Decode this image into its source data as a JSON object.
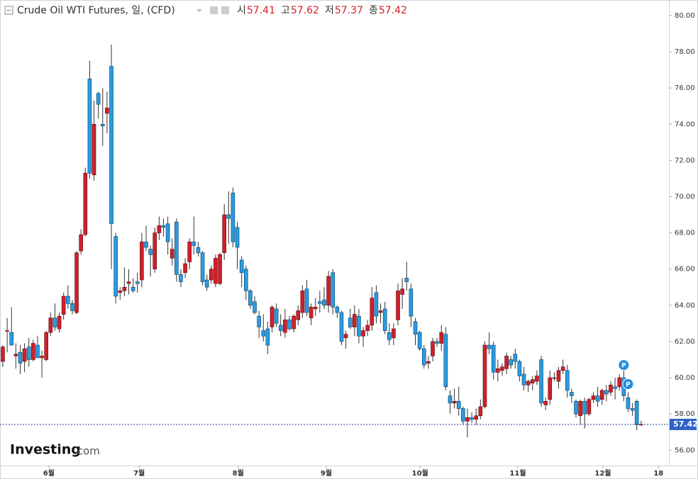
{
  "chart_data": {
    "type": "candlestick",
    "title": "Crude Oil WTI Futures, 일, (CFD)",
    "ohlc_labels": [
      "시",
      "고",
      "저",
      "종"
    ],
    "watermark": {
      "brand": "Investing",
      "suffix": ".com"
    },
    "up_color": "#d0202a",
    "down_color": "#2a9be0",
    "open": [
      60.9,
      62.6,
      62.5,
      61.2,
      61.4,
      60.9,
      61.7,
      61.0,
      61.8,
      61.1,
      61.0,
      62.5,
      63.3,
      62.7,
      63.5,
      64.5,
      64.1,
      63.6,
      67.0,
      67.9,
      76.5,
      71.2,
      75.7,
      74.0,
      74.6,
      77.2,
      67.8,
      64.7,
      64.8,
      65.2,
      65.0,
      65.3,
      65.4,
      67.5,
      67.1,
      66.0,
      68.0,
      68.4,
      68.5,
      66.6,
      68.6,
      65.7,
      65.8,
      66.4,
      67.5,
      67.2,
      66.9,
      65.4,
      65.4,
      65.2,
      65.2,
      66.9,
      69.0,
      70.2,
      68.3,
      66.5,
      66.0,
      64.8,
      64.2,
      63.4,
      62.6,
      62.7,
      62.8,
      63.8,
      62.9,
      62.5,
      63.2,
      62.7,
      63.2,
      63.6,
      64.9,
      63.3,
      63.8,
      64.2,
      64.3,
      64.0,
      65.8,
      63.9,
      63.6,
      62.2,
      63.3,
      62.8,
      63.4,
      62.3,
      62.6,
      62.9,
      64.7,
      63.6,
      63.8,
      62.5,
      62.2,
      63.2,
      64.6,
      65.5,
      64.9,
      63.1,
      62.5,
      61.6,
      60.8,
      61.2,
      62.0,
      61.9,
      62.4,
      59.0,
      58.6,
      58.7,
      58.3,
      57.6,
      57.8,
      57.7,
      57.9,
      58.4,
      61.8,
      61.8,
      60.3,
      60.4,
      60.5,
      61.0,
      61.3,
      60.9,
      60.2,
      59.6,
      59.7,
      59.8,
      61.0,
      58.5,
      58.8,
      60.0,
      59.8,
      60.4,
      60.4,
      59.2,
      58.7,
      57.9,
      58.7,
      58.0,
      58.8,
      59.0,
      58.8,
      59.3,
      59.2,
      59.5,
      59.5,
      60.0,
      58.9,
      58.3,
      58.7,
      57.41
    ],
    "high": [
      61.8,
      63.3,
      63.9,
      61.9,
      61.8,
      61.9,
      62.2,
      62.1,
      62.3,
      61.5,
      62.6,
      63.6,
      64.1,
      63.6,
      64.7,
      65.1,
      64.3,
      67.0,
      68.2,
      71.6,
      77.5,
      75.3,
      75.8,
      76.0,
      75.8,
      78.4,
      68.0,
      65.0,
      66.1,
      66.0,
      65.5,
      65.8,
      68.0,
      68.4,
      67.3,
      68.3,
      68.9,
      68.8,
      68.9,
      67.7,
      68.8,
      66.0,
      66.6,
      67.7,
      68.9,
      67.5,
      67.0,
      65.7,
      66.2,
      66.8,
      66.9,
      69.6,
      70.3,
      70.5,
      68.6,
      66.7,
      66.2,
      64.9,
      64.5,
      63.7,
      63.5,
      63.1,
      64.0,
      64.1,
      63.5,
      63.8,
      63.4,
      63.5,
      64.0,
      65.1,
      65.4,
      64.1,
      64.4,
      64.8,
      65.0,
      65.9,
      66.0,
      64.0,
      63.7,
      62.6,
      63.8,
      64.0,
      63.8,
      62.8,
      63.2,
      65.0,
      65.1,
      64.1,
      64.2,
      63.0,
      63.0,
      65.2,
      65.5,
      66.4,
      65.2,
      63.3,
      62.6,
      61.8,
      61.2,
      62.2,
      62.2,
      62.9,
      62.8,
      59.3,
      59.4,
      59.5,
      58.4,
      58.3,
      58.1,
      58.3,
      58.8,
      62.0,
      62.5,
      62.0,
      61.0,
      60.8,
      61.4,
      61.2,
      61.6,
      61.0,
      60.6,
      59.9,
      60.1,
      60.4,
      61.2,
      58.9,
      60.4,
      60.3,
      60.6,
      61.0,
      60.7,
      59.4,
      58.8,
      58.8,
      58.9,
      58.9,
      59.2,
      59.5,
      59.4,
      59.6,
      59.8,
      60.0,
      60.2,
      60.5,
      59.2,
      58.6,
      58.8,
      57.62
    ],
    "low": [
      60.6,
      61.4,
      61.8,
      60.5,
      60.2,
      60.3,
      60.6,
      60.9,
      61.2,
      60.0,
      60.9,
      62.3,
      62.6,
      62.5,
      63.2,
      63.8,
      63.5,
      63.5,
      66.8,
      67.8,
      71.0,
      70.9,
      74.3,
      72.8,
      73.5,
      66.0,
      64.1,
      64.3,
      64.5,
      64.6,
      64.7,
      64.7,
      65.0,
      67.0,
      65.6,
      65.8,
      67.6,
      67.8,
      66.8,
      66.2,
      65.3,
      65.0,
      65.5,
      66.0,
      66.8,
      66.7,
      65.1,
      64.8,
      65.2,
      65.0,
      65.1,
      66.5,
      67.4,
      67.2,
      66.0,
      65.0,
      64.3,
      63.8,
      63.5,
      62.2,
      62.0,
      61.3,
      62.5,
      62.8,
      62.3,
      62.2,
      62.6,
      62.5,
      62.9,
      63.3,
      63.4,
      62.9,
      63.4,
      63.6,
      63.8,
      63.6,
      63.5,
      63.3,
      61.8,
      61.6,
      62.7,
      62.3,
      61.9,
      61.7,
      62.3,
      62.6,
      63.0,
      63.0,
      62.4,
      61.8,
      61.8,
      62.9,
      63.8,
      64.8,
      62.8,
      61.8,
      61.5,
      60.5,
      60.5,
      60.9,
      61.7,
      61.5,
      59.3,
      58.0,
      58.3,
      57.9,
      57.4,
      56.7,
      57.5,
      57.4,
      57.7,
      58.3,
      61.3,
      59.9,
      59.8,
      60.1,
      60.2,
      60.5,
      60.5,
      59.8,
      59.3,
      59.2,
      59.3,
      59.6,
      58.4,
      58.2,
      58.5,
      59.8,
      59.4,
      60.2,
      58.9,
      58.6,
      57.8,
      57.4,
      57.2,
      57.9,
      58.6,
      58.4,
      58.5,
      58.7,
      59.0,
      58.8,
      59.3,
      58.7,
      58.1,
      57.9,
      57.1,
      57.37
    ],
    "close": [
      61.7,
      62.6,
      61.8,
      61.3,
      60.8,
      61.6,
      61.0,
      61.9,
      61.1,
      61.2,
      62.5,
      63.3,
      62.8,
      63.4,
      64.5,
      64.1,
      63.7,
      66.9,
      67.9,
      71.3,
      71.3,
      74.0,
      75.1,
      73.9,
      74.9,
      68.5,
      64.5,
      64.8,
      65.0,
      65.3,
      64.8,
      65.2,
      67.5,
      67.2,
      66.8,
      68.0,
      68.4,
      68.3,
      67.5,
      67.1,
      65.7,
      65.3,
      66.3,
      67.5,
      67.3,
      66.9,
      65.3,
      65.0,
      66.0,
      66.6,
      66.8,
      69.0,
      68.8,
      67.5,
      67.2,
      65.8,
      64.8,
      64.0,
      63.6,
      62.8,
      62.3,
      61.8,
      63.9,
      63.0,
      62.6,
      63.2,
      62.7,
      63.4,
      63.7,
      64.8,
      63.6,
      63.9,
      63.9,
      64.1,
      64.0,
      65.6,
      63.9,
      63.6,
      62.0,
      62.4,
      62.8,
      63.5,
      62.3,
      62.6,
      62.9,
      64.4,
      63.4,
      63.7,
      62.6,
      62.1,
      62.7,
      64.8,
      64.9,
      65.3,
      63.4,
      62.4,
      61.6,
      60.7,
      60.9,
      62.0,
      61.9,
      62.5,
      59.5,
      58.6,
      58.7,
      58.3,
      57.6,
      57.8,
      57.7,
      57.9,
      58.4,
      61.8,
      61.6,
      60.3,
      60.5,
      60.6,
      61.2,
      60.7,
      60.9,
      60.1,
      59.6,
      59.8,
      59.9,
      60.1,
      58.6,
      58.7,
      60.0,
      60.0,
      60.4,
      60.6,
      59.3,
      59.0,
      58.0,
      58.7,
      58.0,
      58.8,
      59.0,
      58.7,
      59.3,
      59.1,
      59.6,
      59.4,
      60.0,
      59.0,
      58.3,
      58.2,
      57.4,
      57.42
    ],
    "annotations": [
      {
        "label": "P",
        "x": 143,
        "y": 60.7
      },
      {
        "label": "P",
        "x": 144,
        "y": 59.65
      }
    ],
    "xlim": [
      -0.65,
      153.4
    ],
    "xticks": [
      {
        "value": 10.6,
        "label": "6월"
      },
      {
        "value": 31.4,
        "label": "7월"
      },
      {
        "value": 54.2,
        "label": "8월"
      },
      {
        "value": 74.5,
        "label": "9월"
      },
      {
        "value": 96.1,
        "label": "10월"
      },
      {
        "value": 118.6,
        "label": "11월"
      },
      {
        "value": 138.2,
        "label": "12월"
      },
      {
        "value": 151,
        "label": "18"
      }
    ],
    "ylim": [
      55.15,
      80.86
    ],
    "yticks": [
      {
        "value": 56,
        "label": "56.00"
      },
      {
        "value": 58,
        "label": "58.00"
      },
      {
        "value": 60,
        "label": "60.00"
      },
      {
        "value": 62,
        "label": "62.00"
      },
      {
        "value": 64,
        "label": "64.00"
      },
      {
        "value": 66,
        "label": "66.00"
      },
      {
        "value": 68,
        "label": "68.00"
      },
      {
        "value": 70,
        "label": "70.00"
      },
      {
        "value": 72,
        "label": "72.00"
      },
      {
        "value": 74,
        "label": "74.00"
      },
      {
        "value": 76,
        "label": "76.00"
      },
      {
        "value": 78,
        "label": "78.00"
      },
      {
        "value": 80,
        "label": "80.00"
      }
    ],
    "grid": false
  }
}
